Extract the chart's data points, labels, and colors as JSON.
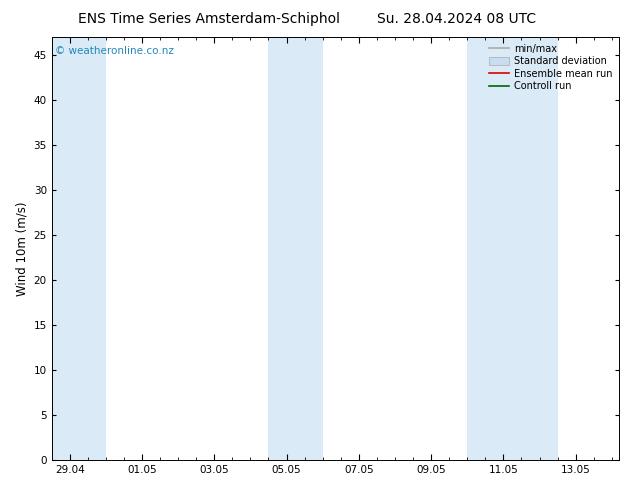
{
  "title_left": "ENS Time Series Amsterdam-Schiphol",
  "title_right": "Su. 28.04.2024 08 UTC",
  "ylabel": "Wind 10m (m/s)",
  "watermark": "© weatheronline.co.nz",
  "bg_color": "#ffffff",
  "plot_bg_color": "#ffffff",
  "shaded_band_color": "#daeaf7",
  "ylim": [
    0,
    47
  ],
  "yticks": [
    0,
    5,
    10,
    15,
    20,
    25,
    30,
    35,
    40,
    45
  ],
  "xtick_labels": [
    "29.04",
    "01.05",
    "03.05",
    "05.05",
    "07.05",
    "09.05",
    "11.05",
    "13.05"
  ],
  "xtick_positions": [
    0,
    2,
    4,
    6,
    8,
    10,
    12,
    14
  ],
  "xmin": -0.5,
  "xmax": 15.2,
  "shaded_bands": [
    {
      "xmin": -0.5,
      "xmax": 1.0
    },
    {
      "xmin": 5.5,
      "xmax": 7.0
    },
    {
      "xmin": 11.0,
      "xmax": 13.5
    }
  ],
  "legend_entries": [
    {
      "label": "min/max",
      "color": "#aaaaaa",
      "lw": 1.2
    },
    {
      "label": "Standard deviation",
      "color": "#c8ddef",
      "lw": 5
    },
    {
      "label": "Ensemble mean run",
      "color": "#dd0000",
      "lw": 1.2
    },
    {
      "label": "Controll run",
      "color": "#006600",
      "lw": 1.2
    }
  ],
  "title_fontsize": 10,
  "tick_label_fontsize": 7.5,
  "ylabel_fontsize": 8.5,
  "watermark_color": "#2288bb",
  "watermark_fontsize": 7.5,
  "legend_fontsize": 7
}
